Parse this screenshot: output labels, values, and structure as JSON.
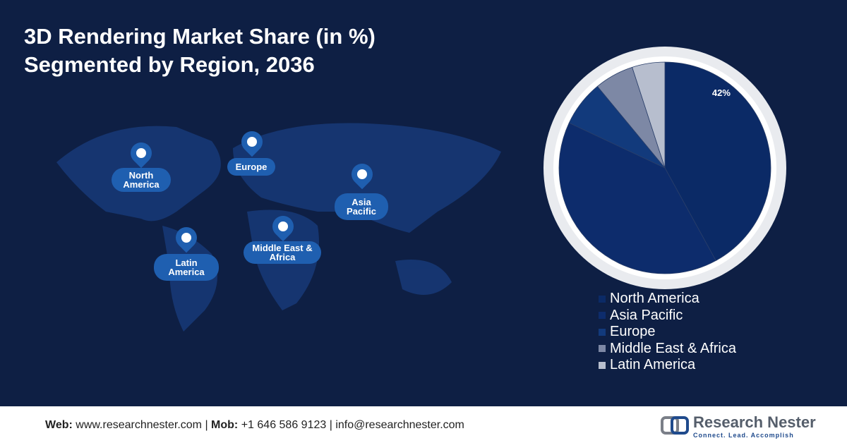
{
  "chart_data": {
    "type": "pie",
    "title": "3D Rendering Market Share (in %)",
    "subtitle": "Segmented by Region, 2036",
    "categories": [
      "North America",
      "Asia Pacific",
      "Europe",
      "Middle East & Africa",
      "Latin America"
    ],
    "values": [
      42,
      40,
      7,
      6,
      5
    ],
    "value_labels": [
      "42%",
      null,
      null,
      null,
      null
    ],
    "colors": [
      "#0b2a66",
      "#0d2c6c",
      "#123a7c",
      "#7d88a5",
      "#b7bece"
    ]
  },
  "map": {
    "labels": [
      "North America",
      "Europe",
      "Asia Pacific",
      "Latin America",
      "Middle East & Africa"
    ]
  },
  "footer": {
    "web_label": "Web:",
    "web": "www.researchnester.com",
    "mob_label": "Mob:",
    "mob": "+1 646 586 9123",
    "email": "info@researchnester.com",
    "logo": "Research Nester",
    "tagline": "Connect. Lead. Accomplish"
  }
}
